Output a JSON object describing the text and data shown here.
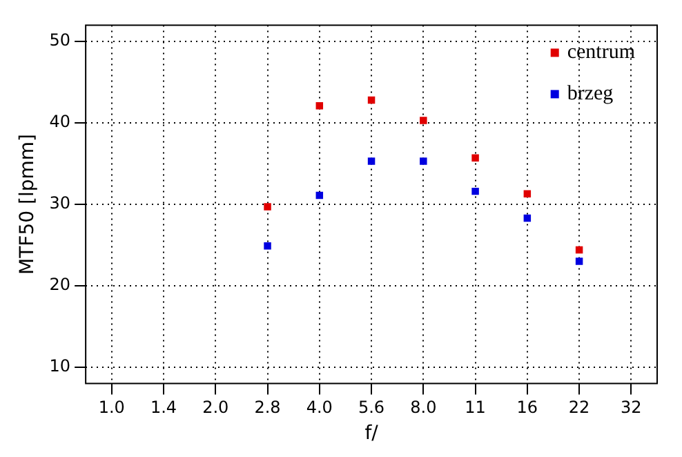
{
  "chart_data": {
    "type": "scatter",
    "xlabel": "f/",
    "ylabel": "MTF50 [lpmm]",
    "categories": [
      "1.0",
      "1.4",
      "2.0",
      "2.8",
      "4.0",
      "5.6",
      "8.0",
      "11",
      "16",
      "22",
      "32"
    ],
    "series": [
      {
        "name": "centrum",
        "color": "#e00000",
        "values": [
          null,
          null,
          null,
          29.7,
          42.1,
          42.8,
          40.3,
          35.7,
          31.3,
          24.4,
          null
        ]
      },
      {
        "name": "brzeg",
        "color": "#0000e0",
        "values": [
          null,
          null,
          null,
          24.9,
          31.1,
          35.3,
          35.3,
          31.6,
          28.3,
          23.0,
          null
        ]
      }
    ],
    "ylim": [
      8,
      52
    ],
    "yticks": [
      10,
      20,
      30,
      40,
      50
    ],
    "grid": true,
    "legend": "top right",
    "marker": "square"
  }
}
